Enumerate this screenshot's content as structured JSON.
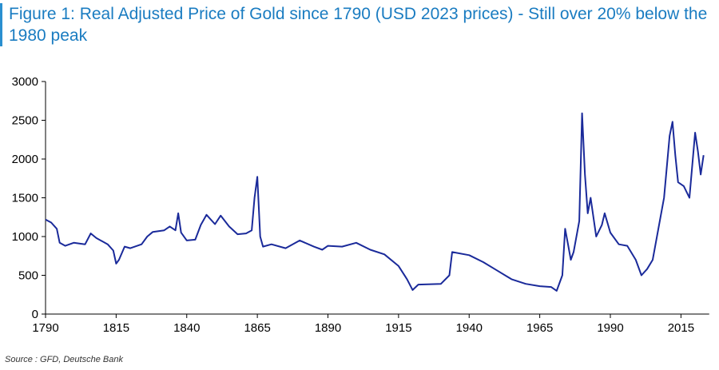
{
  "title": "Figure 1: Real Adjusted Price of Gold since 1790 (USD 2023 prices) - Still over 20% below the 1980 peak",
  "source": "Source : GFD, Deutsche Bank",
  "chart_data": {
    "type": "line",
    "title": "Figure 1: Real Adjusted Price of Gold since 1790 (USD 2023 prices) - Still over 20% below the 1980 peak",
    "xlabel": "",
    "ylabel": "",
    "xlim": [
      1790,
      2025
    ],
    "ylim": [
      0,
      3000
    ],
    "x_ticks": [
      1790,
      1815,
      1840,
      1865,
      1890,
      1915,
      1940,
      1965,
      1990,
      2015
    ],
    "y_ticks": [
      0,
      500,
      1000,
      1500,
      2000,
      2500,
      3000
    ],
    "grid": false,
    "color": "#1a2a9a",
    "series": [
      {
        "x": [
          1790,
          1792,
          1794,
          1795,
          1797,
          1800,
          1804,
          1806,
          1808,
          1812,
          1814,
          1815,
          1816,
          1818,
          1820,
          1824,
          1826,
          1828,
          1832,
          1834,
          1836,
          1837,
          1838,
          1840,
          1843,
          1845,
          1847,
          1850,
          1852,
          1855,
          1858,
          1861,
          1863,
          1864,
          1865,
          1866,
          1867,
          1870,
          1875,
          1880,
          1885,
          1888,
          1890,
          1895,
          1900,
          1905,
          1910,
          1915,
          1918,
          1920,
          1922,
          1930,
          1933,
          1934,
          1940,
          1945,
          1950,
          1955,
          1960,
          1965,
          1969,
          1971,
          1973,
          1974,
          1975,
          1976,
          1977,
          1979,
          1980,
          1981,
          1982,
          1983,
          1985,
          1987,
          1988,
          1990,
          1993,
          1996,
          1999,
          2001,
          2003,
          2005,
          2007,
          2009,
          2011,
          2012,
          2013,
          2014,
          2016,
          2018,
          2020,
          2021,
          2022,
          2023
        ],
        "y": [
          1220,
          1180,
          1100,
          920,
          880,
          920,
          900,
          1040,
          980,
          900,
          820,
          650,
          700,
          870,
          850,
          900,
          1000,
          1060,
          1080,
          1130,
          1080,
          1300,
          1050,
          950,
          960,
          1150,
          1280,
          1160,
          1270,
          1130,
          1030,
          1040,
          1080,
          1500,
          1770,
          1000,
          870,
          900,
          850,
          950,
          870,
          830,
          880,
          870,
          920,
          830,
          770,
          620,
          450,
          310,
          380,
          390,
          500,
          800,
          760,
          670,
          560,
          450,
          390,
          360,
          350,
          300,
          500,
          1100,
          900,
          700,
          800,
          1200,
          2590,
          1800,
          1300,
          1500,
          1000,
          1150,
          1300,
          1050,
          900,
          880,
          700,
          500,
          580,
          700,
          1100,
          1500,
          2300,
          2480,
          2050,
          1700,
          1650,
          1500,
          2340,
          2100,
          1800,
          2050
        ]
      }
    ]
  }
}
